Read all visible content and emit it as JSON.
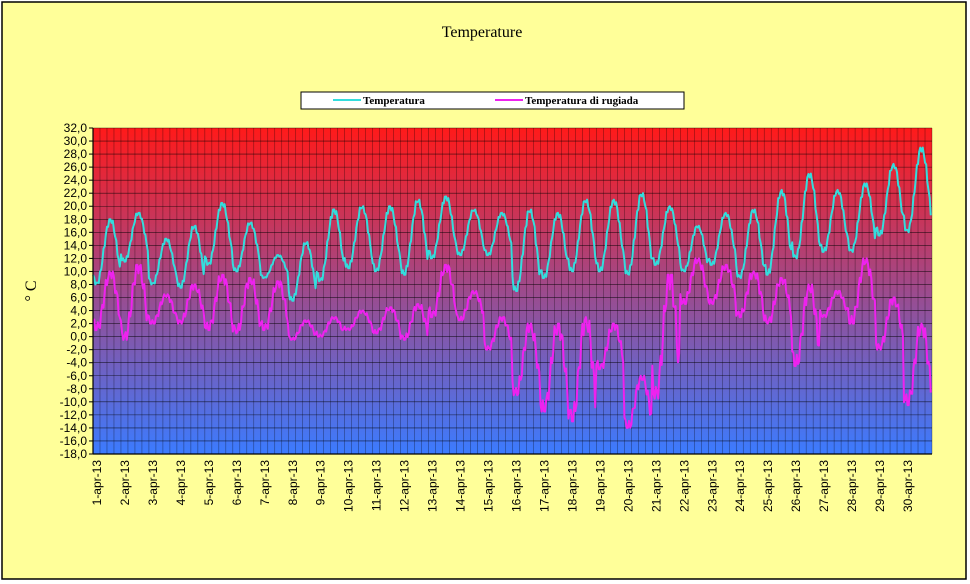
{
  "chart_data": {
    "type": "line",
    "title": "Temperature",
    "ylabel": "° C",
    "ylim": [
      -18,
      32
    ],
    "ytick_step": 2,
    "y_tick_labels": [
      "32,0",
      "30,0",
      "28,0",
      "26,0",
      "24,0",
      "22,0",
      "20,0",
      "18,0",
      "16,0",
      "14,0",
      "12,0",
      "10,0",
      "8,0",
      "6,0",
      "4,0",
      "2,0",
      "0,0",
      "-2,0",
      "-4,0",
      "-6,0",
      "-8,0",
      "-10,0",
      "-12,0",
      "-14,0",
      "-16,0",
      "-18,0"
    ],
    "categories": [
      "1-apr-13",
      "2-apr-13",
      "3-apr-13",
      "4-apr-13",
      "5-apr-13",
      "6-apr-13",
      "7-apr-13",
      "8-apr-13",
      "9-apr-13",
      "10-apr-13",
      "11-apr-13",
      "12-apr-13",
      "13-apr-13",
      "14-apr-13",
      "15-apr-13",
      "16-apr-13",
      "17-apr-13",
      "18-apr-13",
      "19-apr-13",
      "20-apr-13",
      "21-apr-13",
      "22-apr-13",
      "23-apr-13",
      "24-apr-13",
      "25-apr-13",
      "26-apr-13",
      "27-apr-13",
      "28-apr-13",
      "29-apr-13",
      "30-apr-13"
    ],
    "series": [
      {
        "name": "Temperatura",
        "color": "#33dddd",
        "daily_min": [
          8.0,
          11.5,
          8.0,
          7.5,
          11.0,
          10.0,
          9.0,
          5.5,
          8.5,
          10.5,
          10.0,
          9.5,
          12.0,
          12.5,
          12.5,
          7.0,
          9.0,
          10.0,
          10.0,
          9.5,
          11.0,
          10.0,
          11.0,
          9.0,
          9.5,
          12.0,
          13.0,
          13.0,
          15.5,
          16.0
        ],
        "daily_max": [
          18.0,
          19.0,
          15.0,
          17.0,
          20.5,
          17.5,
          12.5,
          14.5,
          19.5,
          20.0,
          20.0,
          21.0,
          21.5,
          19.5,
          19.0,
          19.5,
          19.0,
          21.0,
          21.0,
          22.0,
          20.0,
          17.0,
          19.0,
          19.5,
          22.5,
          25.0,
          22.5,
          23.5,
          26.5,
          29.0
        ]
      },
      {
        "name": "Temperatura di rugiada",
        "color": "#ee22ee",
        "daily_min": [
          1.0,
          -0.5,
          2.0,
          2.0,
          1.0,
          0.5,
          1.0,
          -0.5,
          0.0,
          1.0,
          0.5,
          -0.5,
          3.0,
          2.5,
          -2.0,
          -9.0,
          -11.5,
          -13.0,
          -5.0,
          -14.0,
          -9.5,
          5.0,
          5.0,
          3.0,
          2.0,
          -4.5,
          3.0,
          2.0,
          -2.0,
          -10.5
        ],
        "daily_max": [
          10.0,
          11.0,
          6.5,
          8.0,
          9.5,
          9.0,
          8.5,
          2.5,
          3.0,
          4.0,
          4.5,
          5.0,
          11.0,
          7.0,
          3.0,
          2.0,
          2.0,
          3.0,
          2.0,
          -6.0,
          9.5,
          12.0,
          11.0,
          10.0,
          9.0,
          8.0,
          7.0,
          12.0,
          6.0,
          2.0
        ]
      }
    ],
    "legend_position": "top-center",
    "grid": true,
    "background_gradient": [
      "#ff1a1a",
      "#3b7bff"
    ],
    "frame_color": "#ffff99"
  }
}
